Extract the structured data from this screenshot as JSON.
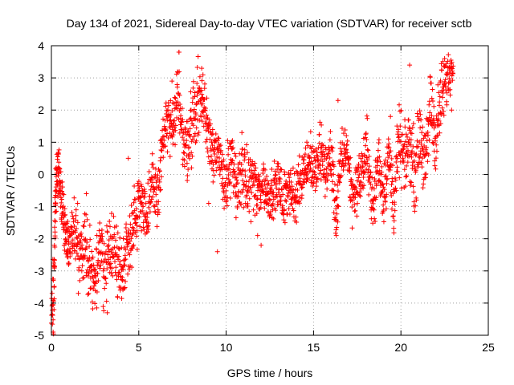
{
  "chart_data": {
    "type": "scatter",
    "title": "Day 134 of 2021, Sidereal Day-to-day VTEC variation (SDTVAR) for receiver sctb",
    "xlabel": "GPS time / hours",
    "ylabel": "SDTVAR / TECUs",
    "xlim": [
      0,
      25
    ],
    "ylim": [
      -5,
      4
    ],
    "xticks": [
      "0",
      "5",
      "10",
      "15",
      "20",
      "25"
    ],
    "yticks": [
      "-5",
      "-4",
      "-3",
      "-2",
      "-1",
      "0",
      "1",
      "2",
      "3",
      "4"
    ],
    "grid": true,
    "marker": "+",
    "color": "#ff0000",
    "series": [
      {
        "name": "SDTVAR",
        "trend": [
          [
            0.0,
            -4.6
          ],
          [
            0.15,
            -3.2
          ],
          [
            0.25,
            -0.5
          ],
          [
            0.4,
            0.1
          ],
          [
            0.6,
            -0.8
          ],
          [
            0.8,
            -1.8
          ],
          [
            1.0,
            -2.2
          ],
          [
            1.3,
            -1.6
          ],
          [
            1.6,
            -2.6
          ],
          [
            1.9,
            -2.0
          ],
          [
            2.2,
            -2.8
          ],
          [
            2.5,
            -3.3
          ],
          [
            2.8,
            -2.4
          ],
          [
            3.1,
            -3.1
          ],
          [
            3.4,
            -2.0
          ],
          [
            3.7,
            -2.6
          ],
          [
            4.0,
            -3.1
          ],
          [
            4.3,
            -2.3
          ],
          [
            4.6,
            -1.7
          ],
          [
            4.9,
            -1.1
          ],
          [
            5.2,
            -0.6
          ],
          [
            5.5,
            -1.6
          ],
          [
            5.8,
            -0.2
          ],
          [
            6.1,
            -0.7
          ],
          [
            6.4,
            1.2
          ],
          [
            6.7,
            1.6
          ],
          [
            7.0,
            1.3
          ],
          [
            7.3,
            2.8
          ],
          [
            7.6,
            0.6
          ],
          [
            7.9,
            1.3
          ],
          [
            8.2,
            1.9
          ],
          [
            8.5,
            2.5
          ],
          [
            8.8,
            1.9
          ],
          [
            9.1,
            1.1
          ],
          [
            9.4,
            0.7
          ],
          [
            9.7,
            0.2
          ],
          [
            10.0,
            -0.3
          ],
          [
            10.3,
            0.4
          ],
          [
            10.6,
            -0.6
          ],
          [
            10.9,
            0.2
          ],
          [
            11.2,
            -0.4
          ],
          [
            11.5,
            -0.1
          ],
          [
            11.8,
            -0.7
          ],
          [
            12.1,
            -0.2
          ],
          [
            12.4,
            -0.7
          ],
          [
            12.7,
            -0.5
          ],
          [
            13.0,
            -0.3
          ],
          [
            13.3,
            -0.9
          ],
          [
            13.6,
            -0.2
          ],
          [
            13.9,
            -1.0
          ],
          [
            14.2,
            -0.1
          ],
          [
            14.5,
            0.2
          ],
          [
            14.8,
            0.5
          ],
          [
            15.1,
            0.0
          ],
          [
            15.4,
            0.7
          ],
          [
            15.7,
            0.1
          ],
          [
            16.0,
            0.6
          ],
          [
            16.3,
            -1.3
          ],
          [
            16.6,
            0.5
          ],
          [
            16.9,
            0.9
          ],
          [
            17.2,
            -0.7
          ],
          [
            17.5,
            -0.3
          ],
          [
            17.8,
            0.1
          ],
          [
            18.1,
            0.8
          ],
          [
            18.4,
            -1.2
          ],
          [
            18.7,
            0.5
          ],
          [
            19.0,
            -0.6
          ],
          [
            19.3,
            0.6
          ],
          [
            19.6,
            -0.9
          ],
          [
            19.9,
            1.1
          ],
          [
            20.2,
            0.3
          ],
          [
            20.5,
            1.1
          ],
          [
            20.8,
            0.0
          ],
          [
            21.1,
            1.4
          ],
          [
            21.4,
            0.1
          ],
          [
            21.7,
            2.3
          ],
          [
            22.0,
            1.1
          ],
          [
            22.3,
            2.4
          ],
          [
            22.6,
            2.9
          ],
          [
            22.9,
            3.3
          ]
        ],
        "spread": [
          1.1,
          0.9,
          0.7,
          0.6,
          0.7,
          0.6,
          0.7,
          0.8,
          0.9,
          0.8,
          0.9,
          0.8,
          0.9,
          0.9,
          0.8,
          0.9,
          0.8,
          0.9,
          0.8,
          0.9,
          0.9,
          0.8,
          0.9,
          0.8,
          0.9,
          0.7,
          0.6,
          0.9,
          1.0,
          0.9,
          1.0,
          0.9,
          0.9,
          0.8,
          0.7,
          0.7,
          0.8,
          0.8,
          0.9,
          0.8,
          0.8,
          0.8,
          0.8,
          0.7,
          0.6,
          0.6,
          0.6,
          0.7,
          0.7,
          0.8,
          0.7,
          0.6,
          0.7,
          0.6,
          0.8,
          0.7,
          0.8,
          0.7,
          0.7,
          0.6,
          0.7,
          0.7,
          0.7,
          0.8,
          0.7,
          0.8,
          0.8,
          0.8,
          0.8,
          0.9,
          0.8,
          0.9,
          0.9,
          0.9,
          0.9,
          1.0,
          0.9,
          0.9,
          0.8,
          0.5
        ],
        "outliers": [
          [
            1.5,
            -0.9
          ],
          [
            2.0,
            -0.6
          ],
          [
            7.3,
            3.8
          ],
          [
            6.9,
            2.9
          ],
          [
            8.6,
            3.3
          ],
          [
            9.5,
            -2.4
          ],
          [
            9.0,
            -0.9
          ],
          [
            11.8,
            -1.9
          ],
          [
            12.0,
            -2.2
          ],
          [
            10.9,
            1.3
          ],
          [
            16.4,
            2.3
          ],
          [
            16.3,
            -1.9
          ],
          [
            19.4,
            1.8
          ],
          [
            20.5,
            3.4
          ],
          [
            22.5,
            3.6
          ],
          [
            22.9,
            2.0
          ],
          [
            0.1,
            -4.9
          ],
          [
            3.2,
            -4.3
          ],
          [
            4.4,
            0.5
          ],
          [
            12.8,
            0.1
          ]
        ]
      }
    ]
  }
}
